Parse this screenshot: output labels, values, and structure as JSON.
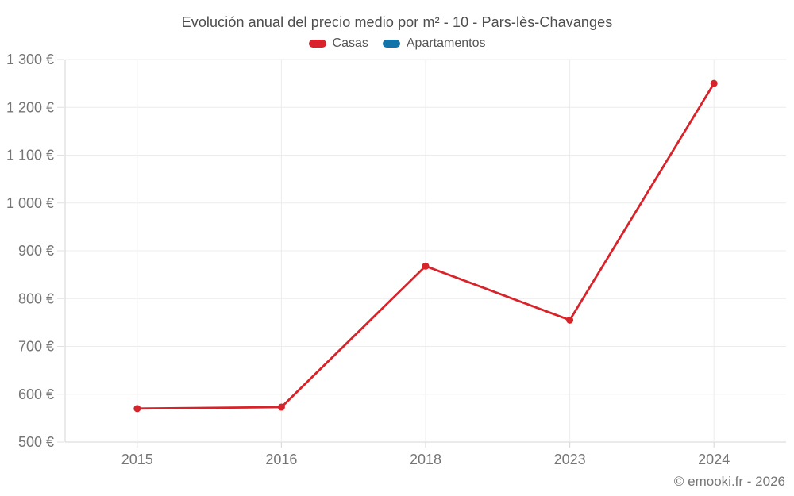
{
  "footer": "© emooki.fr - 2026",
  "chart_data": {
    "type": "line",
    "title": "Evolución anual del precio medio por m² - 10 - Pars-lès-Chavanges",
    "categories": [
      "2015",
      "2016",
      "2018",
      "2023",
      "2024"
    ],
    "series": [
      {
        "name": "Casas",
        "color": "#d8232a",
        "values": [
          570,
          573,
          868,
          755,
          1250
        ]
      },
      {
        "name": "Apartamentos",
        "color": "#1274a8",
        "values": []
      }
    ],
    "xlabel": "",
    "ylabel": "",
    "ylim": [
      500,
      1300
    ],
    "ytick_step": 100,
    "ytick_labels": [
      "500 €",
      "600 €",
      "700 €",
      "800 €",
      "900 €",
      "1 000 €",
      "1 100 €",
      "1 200 €",
      "1 300 €"
    ],
    "grid": true,
    "legend_position": "top"
  }
}
